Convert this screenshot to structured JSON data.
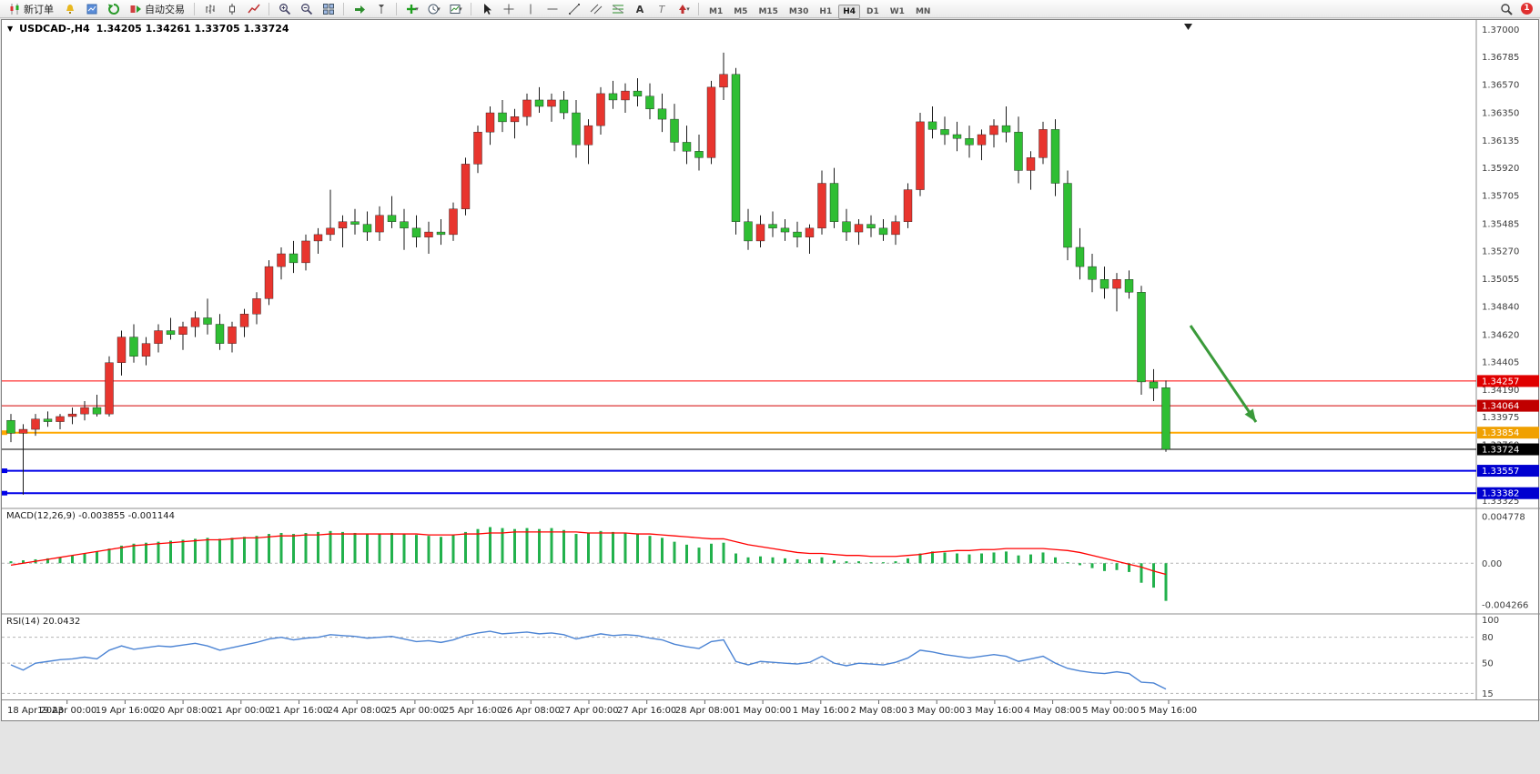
{
  "toolbar": {
    "new_order": "新订单",
    "autotrading": "自动交易",
    "timeframes": [
      "M1",
      "M5",
      "M15",
      "M30",
      "H1",
      "H4",
      "D1",
      "W1",
      "MN"
    ],
    "active_timeframe": "H4",
    "notification_count": "1"
  },
  "chart_header": {
    "collapse_glyph": "▼",
    "symbol_period": "USDCAD-,H4",
    "ohlc": "1.34205 1.34261 1.33705 1.33724"
  },
  "indicator_headers": {
    "macd": "MACD(12,26,9) -0.003855 -0.001144",
    "rsi": "RSI(14) 20.0432"
  },
  "colors": {
    "up": "#e8352e",
    "down": "#2fbe33",
    "wick": "#1a1a1a",
    "macd_hist": "#22b14c",
    "macd_signal": "#ff0000",
    "rsi_line": "#4c84d4",
    "arrow": "#3a9a3a"
  },
  "hlines": [
    {
      "price": 1.34257,
      "label": "1.34257",
      "color": "#ff0000",
      "label_bg": "#e00000",
      "width": 1
    },
    {
      "price": 1.34064,
      "label": "1.34064",
      "color": "#d40000",
      "label_bg": "#c00000",
      "width": 1
    },
    {
      "price": 1.33854,
      "label": "1.33854",
      "color": "#ffa800",
      "label_bg": "#f0a000",
      "width": 2
    },
    {
      "price": 1.33724,
      "label": "1.33724",
      "color": "#000000",
      "label_bg": "#000000",
      "width": 1
    },
    {
      "price": 1.33557,
      "label": "1.33557",
      "color": "#0000e8",
      "label_bg": "#0000d0",
      "width": 2
    },
    {
      "price": 1.33382,
      "label": "1.33382",
      "color": "#0000e8",
      "label_bg": "#0000d0",
      "width": 2
    }
  ],
  "chart_data": [
    {
      "type": "candlestick",
      "title": "USDCAD-,H4",
      "timeframe": "H4",
      "up_color_meaning": "red = bullish, green = bearish",
      "ylim": [
        1.3327,
        1.3706
      ],
      "axis_ticks": [
        "1.37000",
        "1.36785",
        "1.36570",
        "1.36350",
        "1.36135",
        "1.35920",
        "1.35705",
        "1.35485",
        "1.35270",
        "1.35055",
        "1.34840",
        "1.34620",
        "1.34405",
        "1.34190",
        "1.33975",
        "1.33760",
        "1.33545",
        "1.33325"
      ],
      "x_labels": [
        "18 Apr 2023",
        "19 Apr 00:00",
        "19 Apr 16:00",
        "20 Apr 08:00",
        "21 Apr 00:00",
        "21 Apr 16:00",
        "24 Apr 08:00",
        "25 Apr 00:00",
        "25 Apr 16:00",
        "26 Apr 08:00",
        "27 Apr 00:00",
        "27 Apr 16:00",
        "28 Apr 08:00",
        "1 May 00:00",
        "1 May 16:00",
        "2 May 08:00",
        "3 May 00:00",
        "3 May 16:00",
        "4 May 08:00",
        "5 May 00:00",
        "5 May 16:00"
      ],
      "candles": [
        [
          1.3395,
          1.34,
          1.3378,
          1.3385
        ],
        [
          1.3385,
          1.3392,
          1.3337,
          1.3388
        ],
        [
          1.3388,
          1.34,
          1.3383,
          1.3396
        ],
        [
          1.3396,
          1.3402,
          1.339,
          1.3394
        ],
        [
          1.3394,
          1.34,
          1.3388,
          1.3398
        ],
        [
          1.3398,
          1.3405,
          1.3392,
          1.34
        ],
        [
          1.34,
          1.341,
          1.3395,
          1.3405
        ],
        [
          1.3405,
          1.3415,
          1.3398,
          1.34
        ],
        [
          1.34,
          1.3445,
          1.3398,
          1.344
        ],
        [
          1.344,
          1.3465,
          1.343,
          1.346
        ],
        [
          1.346,
          1.347,
          1.344,
          1.3445
        ],
        [
          1.3445,
          1.346,
          1.3438,
          1.3455
        ],
        [
          1.3455,
          1.347,
          1.3448,
          1.3465
        ],
        [
          1.3465,
          1.3475,
          1.3458,
          1.3462
        ],
        [
          1.3462,
          1.3472,
          1.345,
          1.3468
        ],
        [
          1.3468,
          1.348,
          1.346,
          1.3475
        ],
        [
          1.3475,
          1.349,
          1.3462,
          1.347
        ],
        [
          1.347,
          1.3478,
          1.345,
          1.3455
        ],
        [
          1.3455,
          1.3472,
          1.3448,
          1.3468
        ],
        [
          1.3468,
          1.3482,
          1.346,
          1.3478
        ],
        [
          1.3478,
          1.3495,
          1.347,
          1.349
        ],
        [
          1.349,
          1.352,
          1.3485,
          1.3515
        ],
        [
          1.3515,
          1.353,
          1.3505,
          1.3525
        ],
        [
          1.3525,
          1.3535,
          1.351,
          1.3518
        ],
        [
          1.3518,
          1.354,
          1.3512,
          1.3535
        ],
        [
          1.3535,
          1.3545,
          1.3525,
          1.354
        ],
        [
          1.354,
          1.3575,
          1.3535,
          1.3545
        ],
        [
          1.3545,
          1.3555,
          1.353,
          1.355
        ],
        [
          1.355,
          1.356,
          1.354,
          1.3548
        ],
        [
          1.3548,
          1.3558,
          1.3535,
          1.3542
        ],
        [
          1.3542,
          1.3562,
          1.3535,
          1.3555
        ],
        [
          1.3555,
          1.357,
          1.3545,
          1.355
        ],
        [
          1.355,
          1.356,
          1.3528,
          1.3545
        ],
        [
          1.3545,
          1.3555,
          1.353,
          1.3538
        ],
        [
          1.3538,
          1.355,
          1.3525,
          1.3542
        ],
        [
          1.3542,
          1.3552,
          1.3532,
          1.354
        ],
        [
          1.354,
          1.3565,
          1.3535,
          1.356
        ],
        [
          1.356,
          1.36,
          1.3555,
          1.3595
        ],
        [
          1.3595,
          1.3625,
          1.3588,
          1.362
        ],
        [
          1.362,
          1.364,
          1.361,
          1.3635
        ],
        [
          1.3635,
          1.3645,
          1.362,
          1.3628
        ],
        [
          1.3628,
          1.3638,
          1.3615,
          1.3632
        ],
        [
          1.3632,
          1.365,
          1.3625,
          1.3645
        ],
        [
          1.3645,
          1.3655,
          1.3635,
          1.364
        ],
        [
          1.364,
          1.365,
          1.3628,
          1.3645
        ],
        [
          1.3645,
          1.3652,
          1.363,
          1.3635
        ],
        [
          1.3635,
          1.3645,
          1.36,
          1.361
        ],
        [
          1.361,
          1.363,
          1.3595,
          1.3625
        ],
        [
          1.3625,
          1.3655,
          1.3618,
          1.365
        ],
        [
          1.365,
          1.366,
          1.3638,
          1.3645
        ],
        [
          1.3645,
          1.3658,
          1.3635,
          1.3652
        ],
        [
          1.3652,
          1.3662,
          1.364,
          1.3648
        ],
        [
          1.3648,
          1.3658,
          1.363,
          1.3638
        ],
        [
          1.3638,
          1.365,
          1.362,
          1.363
        ],
        [
          1.363,
          1.3642,
          1.3605,
          1.3612
        ],
        [
          1.3612,
          1.3625,
          1.3595,
          1.3605
        ],
        [
          1.3605,
          1.3618,
          1.359,
          1.36
        ],
        [
          1.36,
          1.366,
          1.3595,
          1.3655
        ],
        [
          1.3655,
          1.3682,
          1.3645,
          1.3665
        ],
        [
          1.3665,
          1.367,
          1.354,
          1.355
        ],
        [
          1.355,
          1.356,
          1.3528,
          1.3535
        ],
        [
          1.3535,
          1.3555,
          1.353,
          1.3548
        ],
        [
          1.3548,
          1.3558,
          1.3538,
          1.3545
        ],
        [
          1.3545,
          1.3552,
          1.3535,
          1.3542
        ],
        [
          1.3542,
          1.355,
          1.353,
          1.3538
        ],
        [
          1.3538,
          1.3548,
          1.3525,
          1.3545
        ],
        [
          1.3545,
          1.359,
          1.354,
          1.358
        ],
        [
          1.358,
          1.3592,
          1.3545,
          1.355
        ],
        [
          1.355,
          1.356,
          1.3535,
          1.3542
        ],
        [
          1.3542,
          1.3552,
          1.3532,
          1.3548
        ],
        [
          1.3548,
          1.3555,
          1.3538,
          1.3545
        ],
        [
          1.3545,
          1.3552,
          1.3535,
          1.354
        ],
        [
          1.354,
          1.3555,
          1.3532,
          1.355
        ],
        [
          1.355,
          1.358,
          1.3545,
          1.3575
        ],
        [
          1.3575,
          1.3635,
          1.357,
          1.3628
        ],
        [
          1.3628,
          1.364,
          1.3615,
          1.3622
        ],
        [
          1.3622,
          1.3632,
          1.361,
          1.3618
        ],
        [
          1.3618,
          1.3628,
          1.3605,
          1.3615
        ],
        [
          1.3615,
          1.3625,
          1.36,
          1.361
        ],
        [
          1.361,
          1.3622,
          1.3598,
          1.3618
        ],
        [
          1.3618,
          1.363,
          1.3608,
          1.3625
        ],
        [
          1.3625,
          1.364,
          1.3612,
          1.362
        ],
        [
          1.362,
          1.3632,
          1.358,
          1.359
        ],
        [
          1.359,
          1.3605,
          1.3575,
          1.36
        ],
        [
          1.36,
          1.3628,
          1.3595,
          1.3622
        ],
        [
          1.3622,
          1.363,
          1.357,
          1.358
        ],
        [
          1.358,
          1.359,
          1.352,
          1.353
        ],
        [
          1.353,
          1.3545,
          1.3505,
          1.3515
        ],
        [
          1.3515,
          1.3525,
          1.3495,
          1.3505
        ],
        [
          1.3505,
          1.3515,
          1.349,
          1.3498
        ],
        [
          1.3498,
          1.351,
          1.348,
          1.3505
        ],
        [
          1.3505,
          1.3512,
          1.349,
          1.3495
        ],
        [
          1.3495,
          1.35,
          1.3415,
          1.3425
        ],
        [
          1.3425,
          1.3435,
          1.341,
          1.342
        ],
        [
          1.34205,
          1.34261,
          1.33705,
          1.33724
        ]
      ]
    },
    {
      "type": "bar",
      "name": "MACD(12,26,9)",
      "display_values": "-0.003855 -0.001144",
      "ylim": [
        -0.0051,
        0.00552
      ],
      "axis_ticks": [
        "0.004778",
        "0.00",
        "-0.004266"
      ],
      "values": [
        0.0002,
        0.0003,
        0.0004,
        0.0005,
        0.0006,
        0.0008,
        0.001,
        0.0012,
        0.0015,
        0.0018,
        0.002,
        0.0021,
        0.0022,
        0.0023,
        0.0024,
        0.0025,
        0.0026,
        0.0025,
        0.0026,
        0.0027,
        0.0028,
        0.003,
        0.0031,
        0.003,
        0.0031,
        0.0032,
        0.0033,
        0.0032,
        0.0031,
        0.003,
        0.003,
        0.0031,
        0.003,
        0.0029,
        0.0028,
        0.0027,
        0.0029,
        0.0032,
        0.0035,
        0.0037,
        0.0036,
        0.0035,
        0.0036,
        0.0035,
        0.0036,
        0.0034,
        0.003,
        0.0031,
        0.0033,
        0.0032,
        0.0031,
        0.003,
        0.0028,
        0.0026,
        0.0022,
        0.0019,
        0.0016,
        0.002,
        0.0021,
        0.001,
        0.0006,
        0.0007,
        0.0006,
        0.0005,
        0.0004,
        0.0004,
        0.0006,
        0.0003,
        0.0002,
        0.0002,
        0.0001,
        0.0001,
        0.0002,
        0.0005,
        0.001,
        0.0012,
        0.0011,
        0.001,
        0.0009,
        0.001,
        0.0011,
        0.0012,
        0.0008,
        0.0009,
        0.0011,
        0.0006,
        0.0001,
        -0.0002,
        -0.0005,
        -0.0008,
        -0.0007,
        -0.0009,
        -0.002,
        -0.0025,
        -0.003855
      ],
      "signal": [
        -0.0002,
        0.0,
        0.0002,
        0.0004,
        0.0006,
        0.0008,
        0.001,
        0.0012,
        0.0014,
        0.0016,
        0.0018,
        0.0019,
        0.002,
        0.0021,
        0.0022,
        0.0023,
        0.0024,
        0.0024,
        0.0025,
        0.0026,
        0.0026,
        0.0027,
        0.0028,
        0.0028,
        0.0029,
        0.0029,
        0.003,
        0.003,
        0.003,
        0.003,
        0.003,
        0.003,
        0.003,
        0.003,
        0.0029,
        0.0029,
        0.0029,
        0.003,
        0.003,
        0.0031,
        0.0031,
        0.0032,
        0.0032,
        0.0032,
        0.0032,
        0.0032,
        0.0032,
        0.0031,
        0.0031,
        0.0031,
        0.0031,
        0.003,
        0.003,
        0.0029,
        0.0028,
        0.0027,
        0.0026,
        0.0025,
        0.0025,
        0.0022,
        0.0019,
        0.0017,
        0.0015,
        0.0013,
        0.0011,
        0.001,
        0.001,
        0.0009,
        0.0008,
        0.0008,
        0.0007,
        0.0007,
        0.0007,
        0.0008,
        0.0009,
        0.0011,
        0.0012,
        0.0013,
        0.0013,
        0.0014,
        0.0014,
        0.0015,
        0.0015,
        0.0015,
        0.0015,
        0.0014,
        0.0013,
        0.0011,
        0.0008,
        0.0005,
        0.0002,
        -0.0001,
        -0.0004,
        -0.0008,
        -0.001144
      ]
    },
    {
      "type": "line",
      "name": "RSI(14)",
      "current_value": 20.0432,
      "ylim": [
        0,
        100
      ],
      "levels": [
        80,
        50,
        15
      ],
      "axis_ticks": [
        "100",
        "80",
        "50",
        "15"
      ],
      "values": [
        48,
        42,
        50,
        52,
        54,
        55,
        57,
        55,
        65,
        70,
        66,
        68,
        70,
        69,
        71,
        73,
        70,
        65,
        68,
        71,
        74,
        78,
        80,
        77,
        79,
        80,
        83,
        82,
        81,
        79,
        80,
        81,
        78,
        75,
        76,
        74,
        77,
        82,
        85,
        87,
        84,
        85,
        86,
        84,
        85,
        83,
        78,
        81,
        84,
        82,
        83,
        82,
        79,
        77,
        72,
        69,
        67,
        75,
        77,
        52,
        48,
        52,
        51,
        50,
        49,
        51,
        58,
        50,
        47,
        50,
        49,
        48,
        51,
        56,
        65,
        63,
        60,
        58,
        56,
        58,
        60,
        58,
        52,
        55,
        58,
        50,
        44,
        41,
        39,
        38,
        40,
        38,
        28,
        27,
        20
      ]
    }
  ]
}
